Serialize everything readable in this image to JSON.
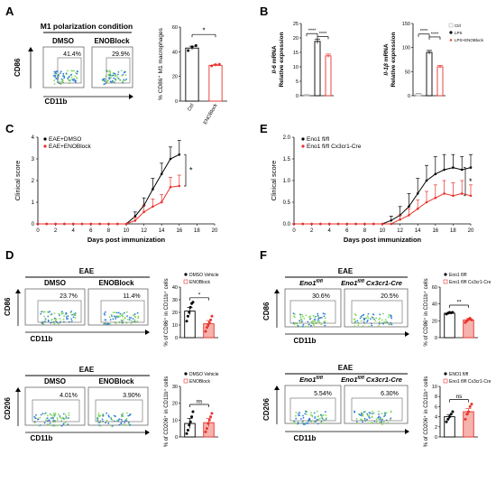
{
  "figure": {
    "panel_letters": [
      "A",
      "B",
      "C",
      "E",
      "D",
      "F"
    ]
  },
  "panelA": {
    "header": "M1 polarization condition",
    "flow_labels": [
      "DMSO",
      "ENOBlock"
    ],
    "percents": [
      "41.4%",
      "29.9%"
    ],
    "y_axis": "CD86",
    "x_axis": "CD11b"
  },
  "panelD": {
    "header1": "EAE",
    "flow1_labels": [
      "DMSO",
      "ENOBlock"
    ],
    "flow1_percents": [
      "23.7%",
      "11.4%"
    ],
    "y1": "CD86",
    "x1": "CD11b",
    "header2": "EAE",
    "flow2_labels": [
      "DMSO",
      "ENOBlock"
    ],
    "flow2_percents": [
      "4.01%",
      "3.90%"
    ],
    "y2": "CD206",
    "x2": "CD11b"
  },
  "panelF": {
    "header1": "EAE",
    "flow1_labels": [
      "Eno1",
      "Eno1"
    ],
    "flow1_sups": [
      "fl/fl",
      "fl/fl"
    ],
    "flow1_cre": [
      "",
      "Cx3cr1-Cre"
    ],
    "flow1_percents": [
      "30.6%",
      "20.5%"
    ],
    "y1": "CD86",
    "x1": "CD11b",
    "header2": "EAE",
    "flow2_labels": [
      "Eno1",
      "Eno1"
    ],
    "flow2_sups": [
      "fl/fl",
      "fl/fl"
    ],
    "flow2_cre": [
      "",
      "Cx3cr1-Cre"
    ],
    "flow2_percents": [
      "5.54%",
      "6.30%"
    ],
    "y2": "CD206",
    "x2": "CD11b"
  },
  "colors": {
    "black": "#000000",
    "red": "#e8322c",
    "grey": "#b0b0b0",
    "flow_blue": "#2f7bd8",
    "flow_green": "#7ed957"
  },
  "chart_data": [
    {
      "id": "A-bar",
      "type": "bar",
      "categories": [
        "Ctrl",
        "ENOBlock"
      ],
      "values": [
        43,
        29
      ],
      "errors": [
        1.5,
        0.8
      ],
      "points": [
        [
          41,
          44,
          45
        ],
        [
          28.5,
          29.5,
          29.8
        ]
      ],
      "ylabel": "% CD86⁺ M1 macrophages",
      "ylim": [
        0,
        60
      ],
      "yticks": [
        "0",
        "20",
        "40",
        "60"
      ],
      "significance": "*"
    },
    {
      "id": "B-IL6",
      "type": "bar",
      "categories": [
        "Ctrl",
        "LPS",
        "LPS+ENOBlock"
      ],
      "values": [
        0.3,
        18.8,
        13.8
      ],
      "errors": [
        0.1,
        0.8,
        0.6
      ],
      "ylabel_gene": "Il-6",
      "ylabel_1": " mRNA",
      "ylabel_2": "Relative expression",
      "ylim": [
        0,
        25
      ],
      "yticks": [
        "0",
        "5",
        "10",
        "15",
        "20",
        "25"
      ],
      "significance": [
        "****",
        "****"
      ]
    },
    {
      "id": "B-IL1b",
      "type": "bar",
      "categories": [
        "Ctrl",
        "LPS",
        "LPS+ENOBlock"
      ],
      "values": [
        4,
        90,
        60
      ],
      "errors": [
        1,
        4,
        3
      ],
      "ylabel_gene": "Il-1β",
      "ylabel_1": " mRNA",
      "ylabel_2": "Relative expression",
      "ylim": [
        0,
        150
      ],
      "yticks": [
        "0",
        "50",
        "100",
        "150"
      ],
      "legend": [
        "Ctrl",
        "LPS",
        "LPS+ENOBlock"
      ],
      "significance": [
        "****",
        "****"
      ]
    },
    {
      "id": "C-line",
      "type": "line",
      "x": [
        0,
        1,
        2,
        3,
        4,
        5,
        6,
        7,
        8,
        9,
        10,
        11,
        12,
        13,
        14,
        15,
        16
      ],
      "series": [
        {
          "name": "EAE+DMSO",
          "values": [
            0,
            0,
            0,
            0,
            0,
            0,
            0,
            0,
            0,
            0,
            0,
            0.35,
            0.85,
            1.6,
            2.3,
            3.0,
            3.2
          ],
          "errors": [
            0,
            0,
            0,
            0,
            0,
            0,
            0,
            0,
            0,
            0,
            0,
            0.2,
            0.35,
            0.5,
            0.5,
            0.55,
            0.65
          ]
        },
        {
          "name": "EAE+ENOBlock",
          "values": [
            0,
            0,
            0,
            0,
            0,
            0,
            0,
            0,
            0,
            0,
            0,
            0.15,
            0.55,
            0.8,
            1.0,
            1.7,
            1.75
          ],
          "errors": [
            0,
            0,
            0,
            0,
            0,
            0,
            0,
            0,
            0,
            0,
            0,
            0.15,
            0.3,
            0.35,
            0.35,
            0.45,
            0.5
          ]
        }
      ],
      "xlabel": "Days post immunization",
      "ylabel": "Clinical score",
      "xlim": [
        0,
        20
      ],
      "ylim": [
        0,
        4
      ],
      "xticks": [
        "0",
        "2",
        "4",
        "6",
        "8",
        "10",
        "12",
        "14",
        "16",
        "18",
        "20"
      ],
      "yticks": [
        "0",
        "1",
        "2",
        "3",
        "4"
      ],
      "significance": "*"
    },
    {
      "id": "E-line",
      "type": "line",
      "x": [
        0,
        1,
        2,
        3,
        4,
        5,
        6,
        7,
        8,
        9,
        10,
        11,
        12,
        13,
        14,
        15,
        16,
        17,
        18,
        19,
        20
      ],
      "series": [
        {
          "name": "Eno1 fl/fl",
          "values": [
            0,
            0,
            0,
            0,
            0,
            0,
            0,
            0,
            0,
            0,
            0,
            0.08,
            0.2,
            0.4,
            0.7,
            1.0,
            1.15,
            1.25,
            1.3,
            1.25,
            1.3
          ],
          "errors": [
            0,
            0,
            0,
            0,
            0,
            0,
            0,
            0,
            0,
            0,
            0,
            0.1,
            0.2,
            0.3,
            0.35,
            0.35,
            0.4,
            0.35,
            0.3,
            0.3,
            0.3
          ]
        },
        {
          "name": "Eno1 fl/fl Cx3cr1-Cre",
          "values": [
            0,
            0,
            0,
            0,
            0,
            0,
            0,
            0,
            0,
            0,
            0,
            0,
            0.1,
            0.2,
            0.35,
            0.5,
            0.6,
            0.7,
            0.65,
            0.7,
            0.65
          ],
          "errors": [
            0,
            0,
            0,
            0,
            0,
            0,
            0,
            0,
            0,
            0,
            0,
            0,
            0.1,
            0.15,
            0.2,
            0.25,
            0.3,
            0.3,
            0.3,
            0.3,
            0.25
          ]
        }
      ],
      "xlabel": "Days post immunization",
      "ylabel": "Clinical score",
      "xlim": [
        0,
        20
      ],
      "ylim": [
        0,
        2
      ],
      "xticks": [
        "0",
        "2",
        "4",
        "6",
        "8",
        "10",
        "12",
        "14",
        "16",
        "18",
        "20"
      ],
      "yticks": [
        "0.0",
        "0.5",
        "1.0",
        "1.5",
        "2.0"
      ],
      "significance": "*"
    },
    {
      "id": "D-bar1",
      "type": "bar",
      "categories": [
        "DMSO Vehicle",
        "ENOBlock"
      ],
      "values": [
        21,
        11
      ],
      "errors": [
        3,
        2.5
      ],
      "points": [
        [
          13,
          17,
          20,
          24,
          27,
          28
        ],
        [
          5,
          8,
          10,
          12,
          14,
          17
        ]
      ],
      "legend": [
        "DMSO Vehicle",
        "ENOBlock"
      ],
      "ylabel": "% of CD86⁺ in CD11b⁺ cells",
      "ylim": [
        0,
        40
      ],
      "yticks": [
        "0",
        "10",
        "20",
        "30",
        "40"
      ],
      "significance": "*"
    },
    {
      "id": "D-bar2",
      "type": "bar",
      "categories": [
        "DMSO Vehicle",
        "ENOBlock"
      ],
      "values": [
        8,
        8.5
      ],
      "errors": [
        3,
        2.5
      ],
      "points": [
        [
          2,
          4,
          7,
          9,
          12,
          15
        ],
        [
          3,
          5,
          8,
          10,
          12,
          14
        ]
      ],
      "legend": [
        "DMSO Vehicle",
        "ENOBlock"
      ],
      "ylabel": "% of CD206⁺ in CD11b⁺ cells",
      "ylim": [
        0,
        30
      ],
      "yticks": [
        "0",
        "10",
        "20",
        "30"
      ],
      "significance": "ns"
    },
    {
      "id": "F-bar1",
      "type": "bar",
      "categories": [
        "Eno1 fl/fl",
        "Eno1 fl/fl Cx3cr1-Cre"
      ],
      "values": [
        29,
        21
      ],
      "errors": [
        1,
        1.5
      ],
      "points": [
        [
          28,
          29,
          30,
          29.5,
          30
        ],
        [
          18,
          20,
          22,
          23,
          21
        ]
      ],
      "legend": [
        "Eno1 fl/fl",
        "Eno1 fl/fl Cx3cr1-Cre"
      ],
      "ylabel": "% of CD86⁺ in CD11b⁺ cells",
      "ylim": [
        0,
        60
      ],
      "yticks": [
        "0",
        "20",
        "40",
        "60"
      ],
      "significance": "**"
    },
    {
      "id": "F-bar2",
      "type": "bar",
      "categories": [
        "Eno1 fl/fl",
        "Eno1 fl/fl Cx3cr1-Cre"
      ],
      "values": [
        4,
        5
      ],
      "errors": [
        0.4,
        0.6
      ],
      "points": [
        [
          3,
          3.5,
          4,
          4.5,
          5
        ],
        [
          3.5,
          4.5,
          5,
          6,
          6.5
        ]
      ],
      "legend": [
        "ENO1 fl/fl",
        "Eno1 fl/fl Cx3cr1-Cre"
      ],
      "ylabel": "% of CD206⁺ in CD11b⁺ cells",
      "ylim": [
        0,
        10
      ],
      "yticks": [
        "0",
        "2",
        "4",
        "6",
        "8",
        "10"
      ],
      "significance": "ns"
    }
  ]
}
